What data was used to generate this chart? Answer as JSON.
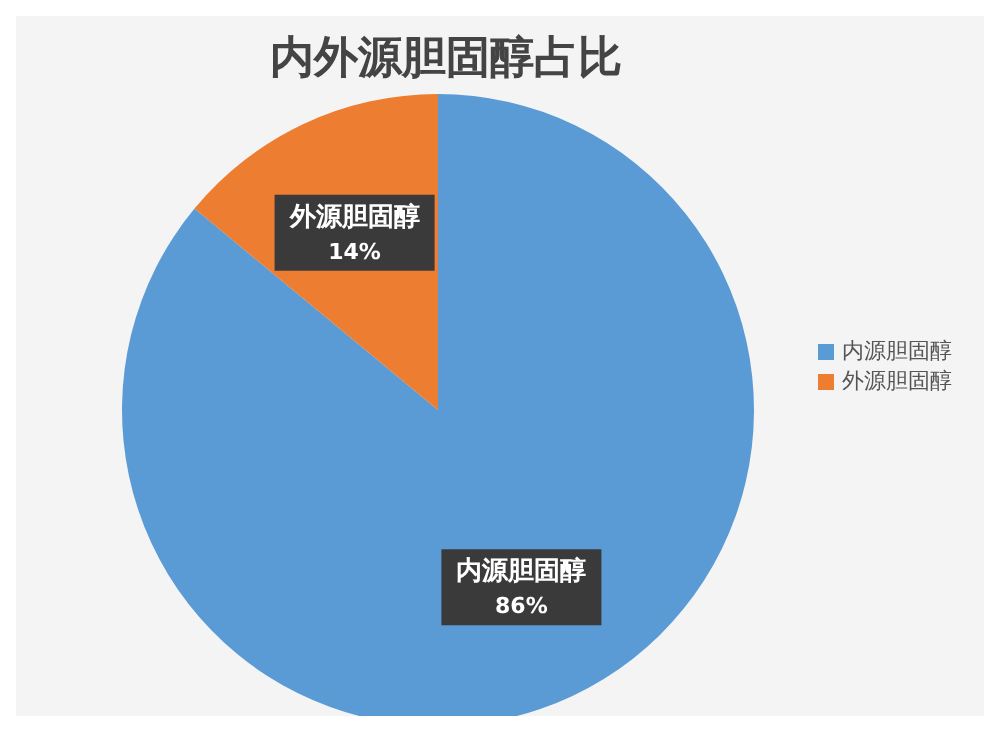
{
  "chart_data": {
    "type": "pie",
    "title": "内外源胆固醇占比",
    "categories": [
      "内源胆固醇",
      "外源胆固醇"
    ],
    "values": [
      86,
      14
    ],
    "colors": [
      "#5b9bd5",
      "#ed7d31"
    ],
    "value_labels": [
      "86%",
      "14%"
    ],
    "legend": "right"
  }
}
